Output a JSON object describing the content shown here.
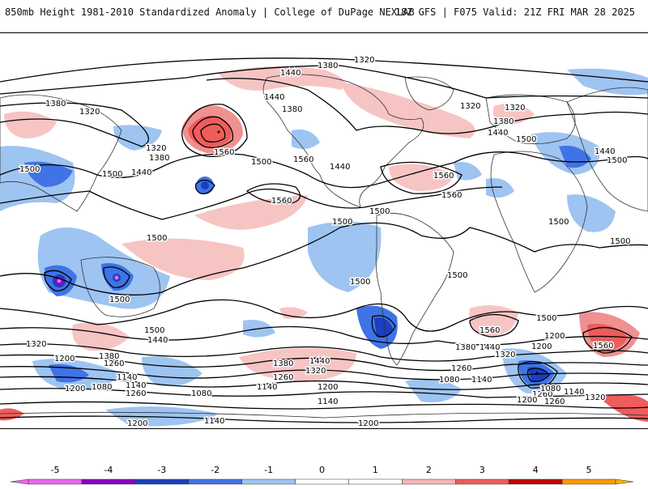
{
  "header": {
    "title": "850mb Height 1981-2010 Standardized Anomaly | College of DuPage NEXLAB",
    "run_info": "18Z GFS | F075 Valid: 21Z FRI MAR 28 2025"
  },
  "colorbar": {
    "ticks": [
      "-5",
      "-4",
      "-3",
      "-2",
      "-1",
      "0",
      "1",
      "2",
      "3",
      "4",
      "5"
    ],
    "colors": [
      "#ee66ee",
      "#8a00c8",
      "#1a3fbf",
      "#3f73e6",
      "#9ec4f2",
      "#ffffff",
      "#ffffff",
      "#f7b6b6",
      "#ee5c5c",
      "#c8000a",
      "#ff9a00"
    ]
  },
  "contour_labels": [
    {
      "id": "c1320a",
      "text": "1320"
    },
    {
      "id": "c1380a",
      "text": "1380"
    },
    {
      "id": "c1440a",
      "text": "1440"
    },
    {
      "id": "c1380b",
      "text": "1380"
    },
    {
      "id": "c1320b",
      "text": "1320"
    },
    {
      "id": "c1440b",
      "text": "1440"
    },
    {
      "id": "c1380c",
      "text": "1380"
    },
    {
      "id": "c1320c",
      "text": "1320"
    },
    {
      "id": "c1380d",
      "text": "1380"
    },
    {
      "id": "c1560a",
      "text": "1560"
    },
    {
      "id": "c1500a",
      "text": "1500"
    },
    {
      "id": "c1500b",
      "text": "1500"
    },
    {
      "id": "c1440c",
      "text": "1440"
    },
    {
      "id": "c1500c",
      "text": "1500"
    },
    {
      "id": "c1560b",
      "text": "1560"
    },
    {
      "id": "c1440d",
      "text": "1440"
    },
    {
      "id": "c1320d",
      "text": "1320"
    },
    {
      "id": "c1320e",
      "text": "1320"
    },
    {
      "id": "c1380e",
      "text": "1380"
    },
    {
      "id": "c1440e",
      "text": "1440"
    },
    {
      "id": "c1500d",
      "text": "1500"
    },
    {
      "id": "c1560c",
      "text": "1560"
    },
    {
      "id": "c1560d",
      "text": "1560"
    },
    {
      "id": "c1440f",
      "text": "1440"
    },
    {
      "id": "c1500e",
      "text": "1500"
    },
    {
      "id": "c1500f",
      "text": "1500"
    },
    {
      "id": "c1500g",
      "text": "1500"
    },
    {
      "id": "c1500h",
      "text": "1500"
    },
    {
      "id": "c1500i",
      "text": "1500"
    },
    {
      "id": "c1500j",
      "text": "1500"
    },
    {
      "id": "c1500k",
      "text": "1500"
    },
    {
      "id": "c1500l",
      "text": "1500"
    },
    {
      "id": "c1500m",
      "text": "1500"
    },
    {
      "id": "c1500n",
      "text": "1500"
    },
    {
      "id": "c1440g",
      "text": "1440"
    },
    {
      "id": "c1380f",
      "text": "1380"
    },
    {
      "id": "c1320f",
      "text": "1320"
    },
    {
      "id": "c1200a",
      "text": "1200"
    },
    {
      "id": "c1260a",
      "text": "1260"
    },
    {
      "id": "c1140a",
      "text": "1140"
    },
    {
      "id": "c1080a",
      "text": "1080"
    },
    {
      "id": "c1200b",
      "text": "1200"
    },
    {
      "id": "c1140b",
      "text": "1140"
    },
    {
      "id": "c1260b",
      "text": "1260"
    },
    {
      "id": "c1080b",
      "text": "1080"
    },
    {
      "id": "c1200c",
      "text": "1200"
    },
    {
      "id": "c1140c",
      "text": "1140"
    },
    {
      "id": "c1380g",
      "text": "1380"
    },
    {
      "id": "c1440h",
      "text": "1440"
    },
    {
      "id": "c1320g",
      "text": "1320"
    },
    {
      "id": "c1260c",
      "text": "1260"
    },
    {
      "id": "c1140d",
      "text": "1140"
    },
    {
      "id": "c1200d",
      "text": "1200"
    },
    {
      "id": "c1140e",
      "text": "1140"
    },
    {
      "id": "c1200e",
      "text": "1200"
    },
    {
      "id": "c1080c",
      "text": "1080"
    },
    {
      "id": "c1260d",
      "text": "1260"
    },
    {
      "id": "c1140f",
      "text": "1140"
    },
    {
      "id": "c1560e",
      "text": "1560"
    },
    {
      "id": "c1380h",
      "text": "1380"
    },
    {
      "id": "c1440i",
      "text": "1440"
    },
    {
      "id": "c1320h",
      "text": "1320"
    },
    {
      "id": "c1260e",
      "text": "1260"
    },
    {
      "id": "c1200f",
      "text": "1200"
    },
    {
      "id": "c1080d",
      "text": "1080"
    },
    {
      "id": "c1260f",
      "text": "1260"
    },
    {
      "id": "c1140g",
      "text": "1140"
    },
    {
      "id": "c1200g",
      "text": "1200"
    },
    {
      "id": "c1320i",
      "text": "1320"
    },
    {
      "id": "c1500o",
      "text": "1500"
    },
    {
      "id": "c1560f",
      "text": "1560"
    },
    {
      "id": "c1200h",
      "text": "1200"
    },
    {
      "id": "c1560g",
      "text": "1560"
    }
  ]
}
